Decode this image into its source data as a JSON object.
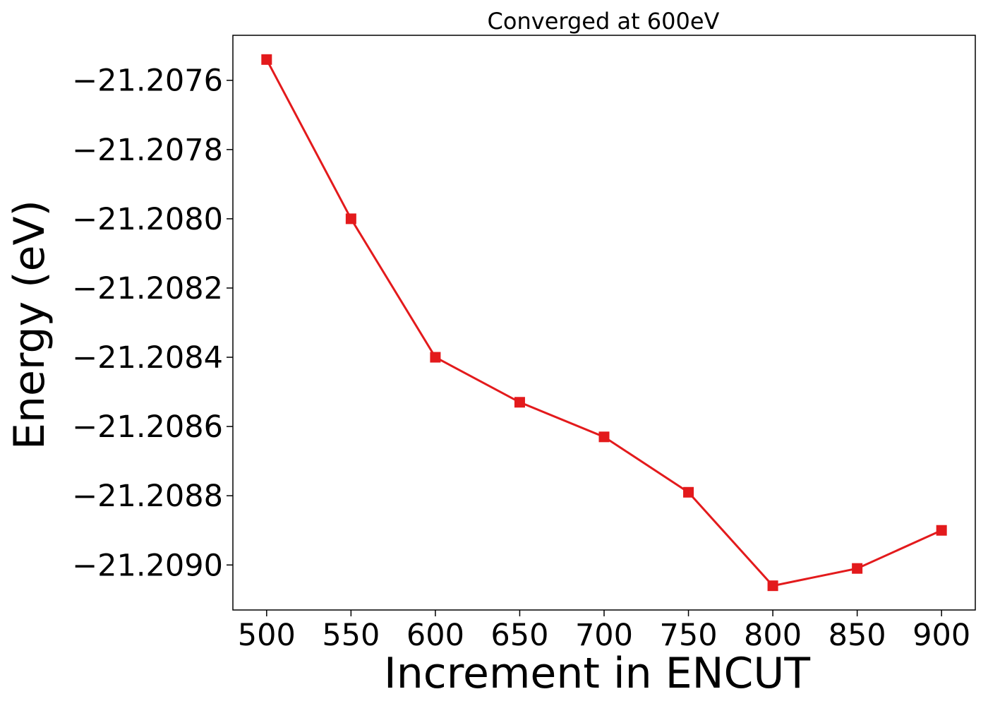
{
  "chart_data": {
    "type": "line",
    "title": "Converged at 600eV",
    "xlabel": "Increment in ENCUT",
    "ylabel": "Energy (eV)",
    "x": [
      500,
      550,
      600,
      650,
      700,
      750,
      800,
      850,
      900
    ],
    "series": [
      {
        "values": [
          -21.20754,
          -21.208,
          -21.2084,
          -21.20853,
          -21.20863,
          -21.20879,
          -21.20906,
          -21.20901,
          -21.2089
        ],
        "color": "#e31a1c",
        "marker": "square"
      }
    ],
    "xticks": [
      500,
      550,
      600,
      650,
      700,
      750,
      800,
      850,
      900
    ],
    "xtick_labels": [
      "500",
      "550",
      "600",
      "650",
      "700",
      "750",
      "800",
      "850",
      "900"
    ],
    "yticks": [
      -21.2076,
      -21.2078,
      -21.208,
      -21.2082,
      -21.2084,
      -21.2086,
      -21.2088,
      -21.209
    ],
    "ytick_labels": [
      "−21.2076",
      "−21.2078",
      "−21.2080",
      "−21.2082",
      "−21.2084",
      "−21.2086",
      "−21.2088",
      "−21.2090"
    ],
    "xlim": [
      480,
      920
    ],
    "ylim": [
      -21.20913,
      -21.20747
    ],
    "grid": false,
    "legend": "none"
  }
}
